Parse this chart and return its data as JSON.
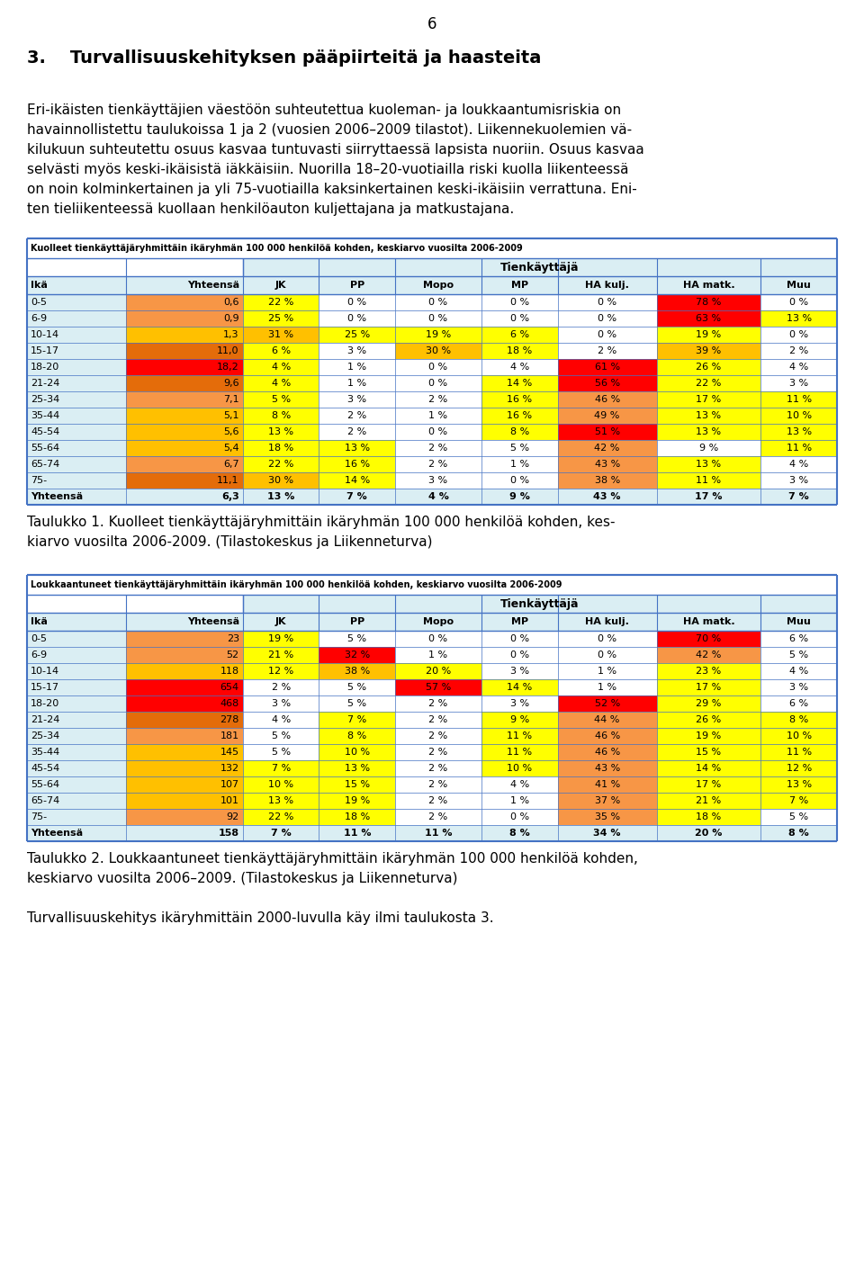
{
  "page_number": "6",
  "section_title": "3.    Turvallisuuskehityksen pääpiirteitä ja haasteita",
  "intro_lines": [
    "Eri-ikäisten tienkäyttäjien väestöön suhteutettua kuoleman- ja loukkaantumisriskia on",
    "havainnollistettu taulukoissa 1 ja 2 (vuosien 2006–2009 tilastot). Liikennekuolemien vä-",
    "kilukuun suhteutettu osuus kasvaa tuntuvasti siirryttaessä lapsista nuoriin. Osuus kasvaa",
    "selvästi myös keski-ikäisistä iäkkäisiin. Nuorilla 18–20-vuotiailla riski kuolla liikenteessä",
    "on noin kolminkertainen ja yli 75-vuotiailla kaksinkertainen keski-ikäisiin verrattuna. Eni-",
    "ten tieliikenteessä kuollaan henkilöauton kuljettajana ja matkustajana."
  ],
  "table1_title": "Kuolleet tienkäyttäjäryhmittäin ikäryhmän 100 000 henkilöä kohden, keskiarvo vuosilta 2006-2009",
  "table1_subtitle": "Tienkäyttäjä",
  "table1_headers": [
    "Ikä",
    "Yhteensä",
    "JK",
    "PP",
    "Mopo",
    "MP",
    "HA kulj.",
    "HA matk.",
    "Muu"
  ],
  "table1_rows": [
    {
      "age": "0-5",
      "total": "0,6",
      "JK": "22 %",
      "PP": "0 %",
      "Mopo": "0 %",
      "MP": "0 %",
      "HA_kulj": "0 %",
      "HA_matk": "78 %",
      "Muu": "0 %"
    },
    {
      "age": "6-9",
      "total": "0,9",
      "JK": "25 %",
      "PP": "0 %",
      "Mopo": "0 %",
      "MP": "0 %",
      "HA_kulj": "0 %",
      "HA_matk": "63 %",
      "Muu": "13 %"
    },
    {
      "age": "10-14",
      "total": "1,3",
      "JK": "31 %",
      "PP": "25 %",
      "Mopo": "19 %",
      "MP": "6 %",
      "HA_kulj": "0 %",
      "HA_matk": "19 %",
      "Muu": "0 %"
    },
    {
      "age": "15-17",
      "total": "11,0",
      "JK": "6 %",
      "PP": "3 %",
      "Mopo": "30 %",
      "MP": "18 %",
      "HA_kulj": "2 %",
      "HA_matk": "39 %",
      "Muu": "2 %"
    },
    {
      "age": "18-20",
      "total": "18,2",
      "JK": "4 %",
      "PP": "1 %",
      "Mopo": "0 %",
      "MP": "4 %",
      "HA_kulj": "61 %",
      "HA_matk": "26 %",
      "Muu": "4 %"
    },
    {
      "age": "21-24",
      "total": "9,6",
      "JK": "4 %",
      "PP": "1 %",
      "Mopo": "0 %",
      "MP": "14 %",
      "HA_kulj": "56 %",
      "HA_matk": "22 %",
      "Muu": "3 %"
    },
    {
      "age": "25-34",
      "total": "7,1",
      "JK": "5 %",
      "PP": "3 %",
      "Mopo": "2 %",
      "MP": "16 %",
      "HA_kulj": "46 %",
      "HA_matk": "17 %",
      "Muu": "11 %"
    },
    {
      "age": "35-44",
      "total": "5,1",
      "JK": "8 %",
      "PP": "2 %",
      "Mopo": "1 %",
      "MP": "16 %",
      "HA_kulj": "49 %",
      "HA_matk": "13 %",
      "Muu": "10 %"
    },
    {
      "age": "45-54",
      "total": "5,6",
      "JK": "13 %",
      "PP": "2 %",
      "Mopo": "0 %",
      "MP": "8 %",
      "HA_kulj": "51 %",
      "HA_matk": "13 %",
      "Muu": "13 %"
    },
    {
      "age": "55-64",
      "total": "5,4",
      "JK": "18 %",
      "PP": "13 %",
      "Mopo": "2 %",
      "MP": "5 %",
      "HA_kulj": "42 %",
      "HA_matk": "9 %",
      "Muu": "11 %"
    },
    {
      "age": "65-74",
      "total": "6,7",
      "JK": "22 %",
      "PP": "16 %",
      "Mopo": "2 %",
      "MP": "1 %",
      "HA_kulj": "43 %",
      "HA_matk": "13 %",
      "Muu": "4 %"
    },
    {
      "age": "75-",
      "total": "11,1",
      "JK": "30 %",
      "PP": "14 %",
      "Mopo": "3 %",
      "MP": "0 %",
      "HA_kulj": "38 %",
      "HA_matk": "11 %",
      "Muu": "3 %"
    },
    {
      "age": "Yhteensä",
      "total": "6,3",
      "JK": "13 %",
      "PP": "7 %",
      "Mopo": "4 %",
      "MP": "9 %",
      "HA_kulj": "43 %",
      "HA_matk": "17 %",
      "Muu": "7 %"
    }
  ],
  "table1_caption_lines": [
    "Taulukko 1. Kuolleet tienkäyttäjäryhmittäin ikäryhmän 100 000 henkilöä kohden, kes-",
    "kiarvo vuosilta 2006-2009. (Tilastokeskus ja Liikenneturva)"
  ],
  "table2_title": "Loukkaantuneet tienkäyttäjäryhmittäin ikäryhmän 100 000 henkilöä kohden, keskiarvo vuosilta 2006-2009",
  "table2_subtitle": "Tienkäyttäjä",
  "table2_headers": [
    "Ikä",
    "Yhteensä",
    "JK",
    "PP",
    "Mopo",
    "MP",
    "HA kulj.",
    "HA matk.",
    "Muu"
  ],
  "table2_rows": [
    {
      "age": "0-5",
      "total": "23",
      "JK": "19 %",
      "PP": "5 %",
      "Mopo": "0 %",
      "MP": "0 %",
      "HA_kulj": "0 %",
      "HA_matk": "70 %",
      "Muu": "6 %"
    },
    {
      "age": "6-9",
      "total": "52",
      "JK": "21 %",
      "PP": "32 %",
      "Mopo": "1 %",
      "MP": "0 %",
      "HA_kulj": "0 %",
      "HA_matk": "42 %",
      "Muu": "5 %"
    },
    {
      "age": "10-14",
      "total": "118",
      "JK": "12 %",
      "PP": "38 %",
      "Mopo": "20 %",
      "MP": "3 %",
      "HA_kulj": "1 %",
      "HA_matk": "23 %",
      "Muu": "4 %"
    },
    {
      "age": "15-17",
      "total": "654",
      "JK": "2 %",
      "PP": "5 %",
      "Mopo": "57 %",
      "MP": "14 %",
      "HA_kulj": "1 %",
      "HA_matk": "17 %",
      "Muu": "3 %"
    },
    {
      "age": "18-20",
      "total": "468",
      "JK": "3 %",
      "PP": "5 %",
      "Mopo": "2 %",
      "MP": "3 %",
      "HA_kulj": "52 %",
      "HA_matk": "29 %",
      "Muu": "6 %"
    },
    {
      "age": "21-24",
      "total": "278",
      "JK": "4 %",
      "PP": "7 %",
      "Mopo": "2 %",
      "MP": "9 %",
      "HA_kulj": "44 %",
      "HA_matk": "26 %",
      "Muu": "8 %"
    },
    {
      "age": "25-34",
      "total": "181",
      "JK": "5 %",
      "PP": "8 %",
      "Mopo": "2 %",
      "MP": "11 %",
      "HA_kulj": "46 %",
      "HA_matk": "19 %",
      "Muu": "10 %"
    },
    {
      "age": "35-44",
      "total": "145",
      "JK": "5 %",
      "PP": "10 %",
      "Mopo": "2 %",
      "MP": "11 %",
      "HA_kulj": "46 %",
      "HA_matk": "15 %",
      "Muu": "11 %"
    },
    {
      "age": "45-54",
      "total": "132",
      "JK": "7 %",
      "PP": "13 %",
      "Mopo": "2 %",
      "MP": "10 %",
      "HA_kulj": "43 %",
      "HA_matk": "14 %",
      "Muu": "12 %"
    },
    {
      "age": "55-64",
      "total": "107",
      "JK": "10 %",
      "PP": "15 %",
      "Mopo": "2 %",
      "MP": "4 %",
      "HA_kulj": "41 %",
      "HA_matk": "17 %",
      "Muu": "13 %"
    },
    {
      "age": "65-74",
      "total": "101",
      "JK": "13 %",
      "PP": "19 %",
      "Mopo": "2 %",
      "MP": "1 %",
      "HA_kulj": "37 %",
      "HA_matk": "21 %",
      "Muu": "7 %"
    },
    {
      "age": "75-",
      "total": "92",
      "JK": "22 %",
      "PP": "18 %",
      "Mopo": "2 %",
      "MP": "0 %",
      "HA_kulj": "35 %",
      "HA_matk": "18 %",
      "Muu": "5 %"
    },
    {
      "age": "Yhteensä",
      "total": "158",
      "JK": "7 %",
      "PP": "11 %",
      "Mopo": "11 %",
      "MP": "8 %",
      "HA_kulj": "34 %",
      "HA_matk": "20 %",
      "Muu": "8 %"
    }
  ],
  "table2_caption_lines": [
    "Taulukko 2. Loukkaantuneet tienkäyttäjäryhmittäin ikäryhmän 100 000 henkilöä kohden,",
    "keskiarvo vuosilta 2006–2009. (Tilastokeskus ja Liikenneturva)"
  ],
  "footer_text": "Turvallisuuskehitys ikäryhmittäin 2000-luvulla käy ilmi taulukosta 3.",
  "light_blue": "#daeef3",
  "border_color": "#4472c4",
  "white": "#ffffff",
  "table1_row_colors": {
    "total_col_colors": [
      "#f79646",
      "#f79646",
      "#ffc000",
      "#e46c0a",
      "#ff0000",
      "#e46c0a",
      "#f79646",
      "#ffc000",
      "#ffc000",
      "#ffc000",
      "#f79646",
      "#e46c0a",
      "#daeef3"
    ],
    "cell_colors_JK": [
      "#ffff00",
      "#ffff00",
      "#ffc000",
      "#ffff00",
      "#ffff00",
      "#ffff00",
      "#ffff00",
      "#ffff00",
      "#ffff00",
      "#ffff00",
      "#ffff00",
      "#ffc000",
      "#ffff00"
    ],
    "cell_colors_PP": [
      "#ffffff",
      "#ffffff",
      "#ffff00",
      "#ffffff",
      "#ffffff",
      "#ffffff",
      "#ffffff",
      "#ffffff",
      "#ffffff",
      "#ffff00",
      "#ffff00",
      "#ffff00",
      "#ffff00"
    ],
    "cell_colors_Mopo": [
      "#ffffff",
      "#ffffff",
      "#ffff00",
      "#ffc000",
      "#ffffff",
      "#ffffff",
      "#ffffff",
      "#ffffff",
      "#ffffff",
      "#ffffff",
      "#ffffff",
      "#ffffff",
      "#ffffff"
    ],
    "cell_colors_MP": [
      "#ffffff",
      "#ffffff",
      "#ffff00",
      "#ffff00",
      "#ffffff",
      "#ffff00",
      "#ffff00",
      "#ffff00",
      "#ffff00",
      "#ffffff",
      "#ffffff",
      "#ffffff",
      "#ffff00"
    ],
    "cell_colors_HA_kulj": [
      "#ffffff",
      "#ffffff",
      "#ffffff",
      "#ffffff",
      "#ff0000",
      "#ff0000",
      "#f79646",
      "#f79646",
      "#ff0000",
      "#f79646",
      "#f79646",
      "#f79646",
      "#f79646"
    ],
    "cell_colors_HA_matk": [
      "#ff0000",
      "#ff0000",
      "#ffff00",
      "#ffc000",
      "#ffff00",
      "#ffff00",
      "#ffff00",
      "#ffff00",
      "#ffff00",
      "#ffffff",
      "#ffff00",
      "#ffff00",
      "#ffff00"
    ],
    "cell_colors_Muu": [
      "#ffffff",
      "#ffff00",
      "#ffffff",
      "#ffffff",
      "#ffffff",
      "#ffffff",
      "#ffff00",
      "#ffff00",
      "#ffff00",
      "#ffff00",
      "#ffffff",
      "#ffffff",
      "#ffff00"
    ]
  },
  "table2_row_colors": {
    "total_col_colors": [
      "#f79646",
      "#f79646",
      "#ffc000",
      "#ff0000",
      "#ff0000",
      "#e46c0a",
      "#f79646",
      "#ffc000",
      "#ffc000",
      "#ffc000",
      "#ffc000",
      "#f79646",
      "#daeef3"
    ],
    "cell_colors_JK": [
      "#ffff00",
      "#ffff00",
      "#ffff00",
      "#ffffff",
      "#ffffff",
      "#ffffff",
      "#ffffff",
      "#ffffff",
      "#ffff00",
      "#ffff00",
      "#ffff00",
      "#ffff00",
      "#ffff00"
    ],
    "cell_colors_PP": [
      "#ffffff",
      "#ff0000",
      "#ffc000",
      "#ffffff",
      "#ffffff",
      "#ffff00",
      "#ffff00",
      "#ffff00",
      "#ffff00",
      "#ffff00",
      "#ffff00",
      "#ffff00",
      "#ffff00"
    ],
    "cell_colors_Mopo": [
      "#ffffff",
      "#ffffff",
      "#ffff00",
      "#ff0000",
      "#ffffff",
      "#ffffff",
      "#ffffff",
      "#ffffff",
      "#ffffff",
      "#ffffff",
      "#ffffff",
      "#ffffff",
      "#ffff00"
    ],
    "cell_colors_MP": [
      "#ffffff",
      "#ffffff",
      "#ffffff",
      "#ffff00",
      "#ffffff",
      "#ffff00",
      "#ffff00",
      "#ffff00",
      "#ffff00",
      "#ffffff",
      "#ffffff",
      "#ffffff",
      "#ffff00"
    ],
    "cell_colors_HA_kulj": [
      "#ffffff",
      "#ffffff",
      "#ffffff",
      "#ffffff",
      "#ff0000",
      "#f79646",
      "#f79646",
      "#f79646",
      "#f79646",
      "#f79646",
      "#f79646",
      "#f79646",
      "#f79646"
    ],
    "cell_colors_HA_matk": [
      "#ff0000",
      "#f79646",
      "#ffff00",
      "#ffff00",
      "#ffff00",
      "#ffff00",
      "#ffff00",
      "#ffff00",
      "#ffff00",
      "#ffff00",
      "#ffff00",
      "#ffff00",
      "#ffff00"
    ],
    "cell_colors_Muu": [
      "#ffffff",
      "#ffffff",
      "#ffffff",
      "#ffffff",
      "#ffffff",
      "#ffff00",
      "#ffff00",
      "#ffff00",
      "#ffff00",
      "#ffff00",
      "#ffff00",
      "#ffffff",
      "#ffff00"
    ]
  }
}
